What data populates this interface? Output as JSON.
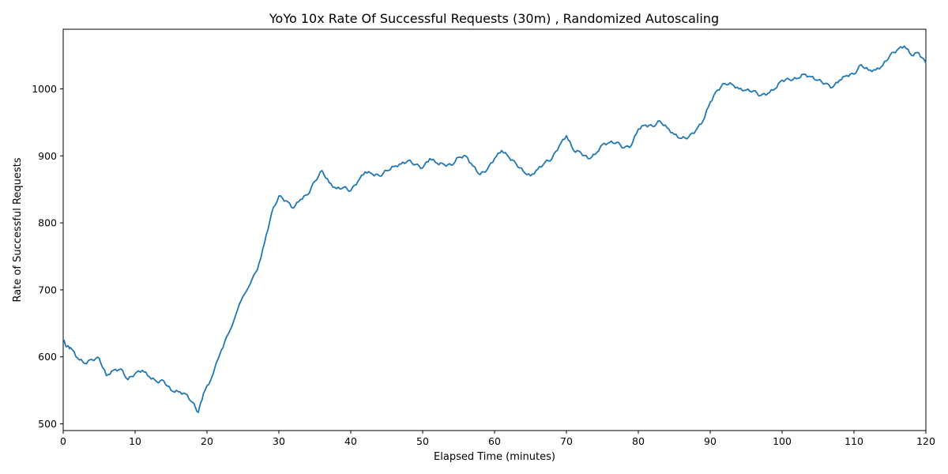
{
  "chart_data": {
    "type": "line",
    "title": "YoYo 10x Rate Of Successful Requests (30m) , Randomized Autoscaling",
    "xlabel": "Elapsed Time (minutes)",
    "ylabel": "Rate of Successful Requests",
    "xlim": [
      0,
      120
    ],
    "ylim": [
      490,
      1089
    ],
    "xticks": [
      0,
      10,
      20,
      30,
      40,
      50,
      60,
      70,
      80,
      90,
      100,
      110,
      120
    ],
    "yticks": [
      500,
      600,
      700,
      800,
      900,
      1000
    ],
    "xtick_labels": [
      "0",
      "10",
      "20",
      "30",
      "40",
      "50",
      "60",
      "70",
      "80",
      "90",
      "100",
      "110",
      "120"
    ],
    "ytick_labels": [
      "500",
      "600",
      "700",
      "800",
      "900",
      "1000"
    ],
    "grid": false,
    "legend": "none",
    "series": [
      {
        "color": "#1f77b4",
        "x": [
          0,
          0.5,
          1,
          2,
          3,
          4,
          5,
          6,
          7,
          8,
          9,
          10,
          11,
          12,
          13,
          14,
          15,
          16,
          17,
          18,
          18.8,
          19.5,
          20.5,
          22,
          23,
          25,
          27,
          28,
          29,
          30,
          31,
          32,
          33,
          34,
          35,
          36,
          37,
          38,
          39,
          40,
          41,
          42,
          43,
          44,
          45,
          46,
          47,
          48,
          49,
          50,
          51,
          52,
          53,
          54,
          55,
          56,
          57,
          58,
          59,
          60,
          61,
          62,
          63,
          64,
          65,
          66,
          67,
          68,
          69,
          70,
          71,
          72,
          73,
          74,
          75,
          76,
          77,
          78,
          79,
          80,
          81,
          82,
          83,
          84,
          85,
          86,
          87,
          88,
          89,
          90,
          91,
          92,
          93,
          94,
          95,
          96,
          97,
          98,
          99,
          100,
          101,
          102,
          103,
          104,
          105,
          106,
          107,
          108,
          109,
          110,
          111,
          112,
          113,
          114,
          115,
          116,
          117,
          118,
          119,
          120
        ],
        "y": [
          625,
          615,
          614,
          598,
          590,
          596,
          598,
          572,
          580,
          582,
          566,
          575,
          580,
          570,
          563,
          564,
          550,
          548,
          545,
          532,
          517,
          545,
          565,
          610,
          635,
          690,
          730,
          770,
          815,
          840,
          833,
          822,
          835,
          842,
          862,
          878,
          860,
          851,
          853,
          848,
          862,
          876,
          873,
          870,
          878,
          884,
          888,
          893,
          887,
          882,
          896,
          889,
          887,
          886,
          898,
          900,
          885,
          872,
          880,
          896,
          908,
          898,
          888,
          877,
          870,
          880,
          890,
          896,
          915,
          930,
          908,
          905,
          896,
          902,
          917,
          920,
          920,
          912,
          915,
          940,
          946,
          944,
          952,
          942,
          932,
          926,
          928,
          938,
          952,
          980,
          998,
          1008,
          1007,
          1000,
          998,
          997,
          990,
          993,
          1000,
          1013,
          1014,
          1015,
          1022,
          1018,
          1013,
          1008,
          1002,
          1013,
          1020,
          1022,
          1036,
          1028,
          1028,
          1035,
          1050,
          1058,
          1064,
          1050,
          1054,
          1038
        ]
      }
    ]
  }
}
